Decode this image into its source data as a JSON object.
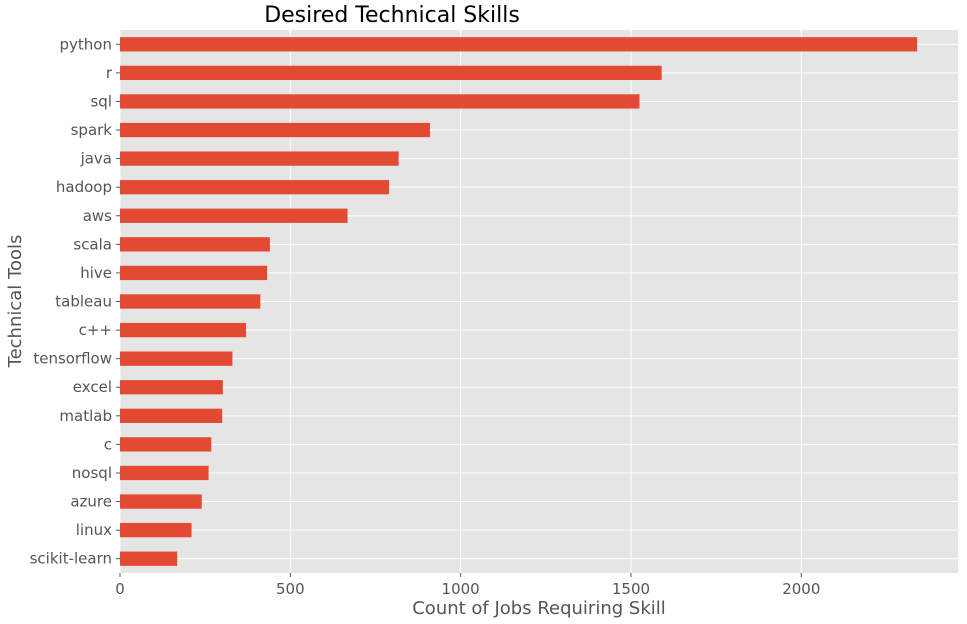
{
  "chart_data": {
    "type": "bar",
    "orientation": "horizontal",
    "title": "Desired Technical Skills",
    "xlabel": "Count of Jobs Requiring Skill",
    "ylabel": "Technical Tools",
    "categories": [
      "python",
      "r",
      "sql",
      "spark",
      "java",
      "hadoop",
      "aws",
      "scala",
      "hive",
      "tableau",
      "c++",
      "tensorflow",
      "excel",
      "matlab",
      "c",
      "nosql",
      "azure",
      "linux",
      "scikit-learn"
    ],
    "values": [
      2340,
      1590,
      1525,
      910,
      818,
      790,
      668,
      440,
      432,
      412,
      370,
      330,
      302,
      300,
      268,
      260,
      240,
      210,
      168
    ],
    "xlim": [
      0,
      2460
    ],
    "xticks": [
      0,
      500,
      1000,
      1500,
      2000
    ],
    "xtick_labels": [
      "0",
      "500",
      "1000",
      "1500",
      "2000"
    ],
    "grid": true,
    "colors": {
      "bar": "#E24A33",
      "plot_background": "#E5E5E5",
      "grid": "#FFFFFF"
    }
  }
}
